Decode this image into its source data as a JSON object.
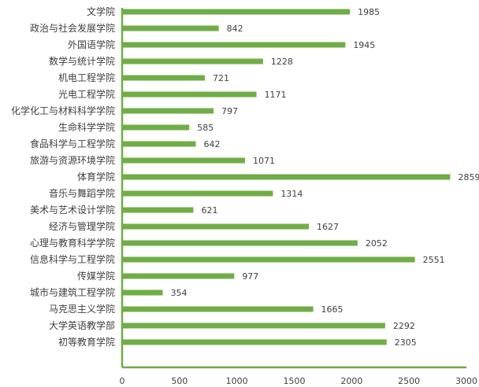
{
  "chart_data": {
    "type": "bar",
    "orientation": "horizontal",
    "categories": [
      "文学院",
      "政治与社会发展学院",
      "外国语学院",
      "数学与统计学院",
      "机电工程学院",
      "光电工程学院",
      "化学化工与材料科学学院",
      "生命科学学院",
      "食品科学与工程学院",
      "旅游与资源环境学院",
      "体育学院",
      "音乐与舞蹈学院",
      "美术与艺术设计学院",
      "经济与管理学院",
      "心理与教育科学学院",
      "信息科学与工程学院",
      "传媒学院",
      "城市与建筑工程学院",
      "马克思主义学院",
      "大学英语教学部",
      "初等教育学院"
    ],
    "values": [
      1985,
      842,
      1945,
      1228,
      721,
      1171,
      797,
      585,
      642,
      1071,
      2859,
      1314,
      621,
      1627,
      2052,
      2551,
      977,
      354,
      1665,
      2292,
      2305
    ],
    "xlim": [
      0,
      3000
    ],
    "xticks": [
      0,
      500,
      1000,
      1500,
      2000,
      2500,
      3000
    ],
    "title": "",
    "xlabel": "",
    "ylabel": "",
    "grid": false,
    "data_labels": true,
    "bar_color": "#70AD47",
    "axis_color": "#70AD47"
  }
}
